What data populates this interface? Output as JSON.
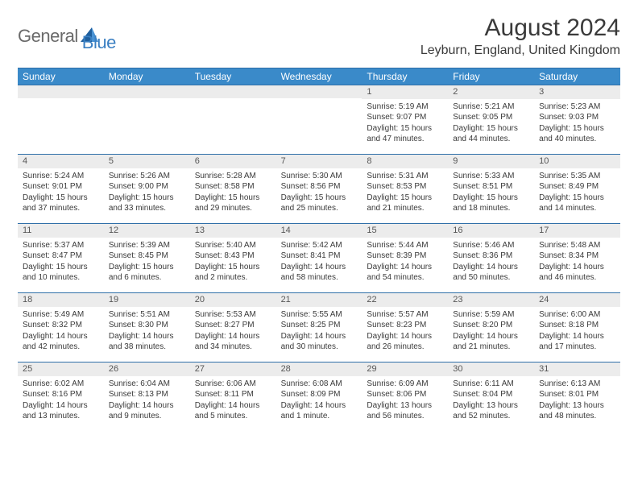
{
  "logo": {
    "part1": "General",
    "part2": "Blue"
  },
  "title": "August 2024",
  "location": "Leyburn, England, United Kingdom",
  "colors": {
    "header_bg": "#3a8ac9",
    "border": "#2f6fa8",
    "daynum_bg": "#ececec",
    "logo_gray": "#6a6a6a",
    "logo_blue": "#3a7fc2"
  },
  "dow": [
    "Sunday",
    "Monday",
    "Tuesday",
    "Wednesday",
    "Thursday",
    "Friday",
    "Saturday"
  ],
  "leading_blanks": 4,
  "days": [
    {
      "n": "1",
      "sr": "Sunrise: 5:19 AM",
      "ss": "Sunset: 9:07 PM",
      "dl1": "Daylight: 15 hours",
      "dl2": "and 47 minutes."
    },
    {
      "n": "2",
      "sr": "Sunrise: 5:21 AM",
      "ss": "Sunset: 9:05 PM",
      "dl1": "Daylight: 15 hours",
      "dl2": "and 44 minutes."
    },
    {
      "n": "3",
      "sr": "Sunrise: 5:23 AM",
      "ss": "Sunset: 9:03 PM",
      "dl1": "Daylight: 15 hours",
      "dl2": "and 40 minutes."
    },
    {
      "n": "4",
      "sr": "Sunrise: 5:24 AM",
      "ss": "Sunset: 9:01 PM",
      "dl1": "Daylight: 15 hours",
      "dl2": "and 37 minutes."
    },
    {
      "n": "5",
      "sr": "Sunrise: 5:26 AM",
      "ss": "Sunset: 9:00 PM",
      "dl1": "Daylight: 15 hours",
      "dl2": "and 33 minutes."
    },
    {
      "n": "6",
      "sr": "Sunrise: 5:28 AM",
      "ss": "Sunset: 8:58 PM",
      "dl1": "Daylight: 15 hours",
      "dl2": "and 29 minutes."
    },
    {
      "n": "7",
      "sr": "Sunrise: 5:30 AM",
      "ss": "Sunset: 8:56 PM",
      "dl1": "Daylight: 15 hours",
      "dl2": "and 25 minutes."
    },
    {
      "n": "8",
      "sr": "Sunrise: 5:31 AM",
      "ss": "Sunset: 8:53 PM",
      "dl1": "Daylight: 15 hours",
      "dl2": "and 21 minutes."
    },
    {
      "n": "9",
      "sr": "Sunrise: 5:33 AM",
      "ss": "Sunset: 8:51 PM",
      "dl1": "Daylight: 15 hours",
      "dl2": "and 18 minutes."
    },
    {
      "n": "10",
      "sr": "Sunrise: 5:35 AM",
      "ss": "Sunset: 8:49 PM",
      "dl1": "Daylight: 15 hours",
      "dl2": "and 14 minutes."
    },
    {
      "n": "11",
      "sr": "Sunrise: 5:37 AM",
      "ss": "Sunset: 8:47 PM",
      "dl1": "Daylight: 15 hours",
      "dl2": "and 10 minutes."
    },
    {
      "n": "12",
      "sr": "Sunrise: 5:39 AM",
      "ss": "Sunset: 8:45 PM",
      "dl1": "Daylight: 15 hours",
      "dl2": "and 6 minutes."
    },
    {
      "n": "13",
      "sr": "Sunrise: 5:40 AM",
      "ss": "Sunset: 8:43 PM",
      "dl1": "Daylight: 15 hours",
      "dl2": "and 2 minutes."
    },
    {
      "n": "14",
      "sr": "Sunrise: 5:42 AM",
      "ss": "Sunset: 8:41 PM",
      "dl1": "Daylight: 14 hours",
      "dl2": "and 58 minutes."
    },
    {
      "n": "15",
      "sr": "Sunrise: 5:44 AM",
      "ss": "Sunset: 8:39 PM",
      "dl1": "Daylight: 14 hours",
      "dl2": "and 54 minutes."
    },
    {
      "n": "16",
      "sr": "Sunrise: 5:46 AM",
      "ss": "Sunset: 8:36 PM",
      "dl1": "Daylight: 14 hours",
      "dl2": "and 50 minutes."
    },
    {
      "n": "17",
      "sr": "Sunrise: 5:48 AM",
      "ss": "Sunset: 8:34 PM",
      "dl1": "Daylight: 14 hours",
      "dl2": "and 46 minutes."
    },
    {
      "n": "18",
      "sr": "Sunrise: 5:49 AM",
      "ss": "Sunset: 8:32 PM",
      "dl1": "Daylight: 14 hours",
      "dl2": "and 42 minutes."
    },
    {
      "n": "19",
      "sr": "Sunrise: 5:51 AM",
      "ss": "Sunset: 8:30 PM",
      "dl1": "Daylight: 14 hours",
      "dl2": "and 38 minutes."
    },
    {
      "n": "20",
      "sr": "Sunrise: 5:53 AM",
      "ss": "Sunset: 8:27 PM",
      "dl1": "Daylight: 14 hours",
      "dl2": "and 34 minutes."
    },
    {
      "n": "21",
      "sr": "Sunrise: 5:55 AM",
      "ss": "Sunset: 8:25 PM",
      "dl1": "Daylight: 14 hours",
      "dl2": "and 30 minutes."
    },
    {
      "n": "22",
      "sr": "Sunrise: 5:57 AM",
      "ss": "Sunset: 8:23 PM",
      "dl1": "Daylight: 14 hours",
      "dl2": "and 26 minutes."
    },
    {
      "n": "23",
      "sr": "Sunrise: 5:59 AM",
      "ss": "Sunset: 8:20 PM",
      "dl1": "Daylight: 14 hours",
      "dl2": "and 21 minutes."
    },
    {
      "n": "24",
      "sr": "Sunrise: 6:00 AM",
      "ss": "Sunset: 8:18 PM",
      "dl1": "Daylight: 14 hours",
      "dl2": "and 17 minutes."
    },
    {
      "n": "25",
      "sr": "Sunrise: 6:02 AM",
      "ss": "Sunset: 8:16 PM",
      "dl1": "Daylight: 14 hours",
      "dl2": "and 13 minutes."
    },
    {
      "n": "26",
      "sr": "Sunrise: 6:04 AM",
      "ss": "Sunset: 8:13 PM",
      "dl1": "Daylight: 14 hours",
      "dl2": "and 9 minutes."
    },
    {
      "n": "27",
      "sr": "Sunrise: 6:06 AM",
      "ss": "Sunset: 8:11 PM",
      "dl1": "Daylight: 14 hours",
      "dl2": "and 5 minutes."
    },
    {
      "n": "28",
      "sr": "Sunrise: 6:08 AM",
      "ss": "Sunset: 8:09 PM",
      "dl1": "Daylight: 14 hours",
      "dl2": "and 1 minute."
    },
    {
      "n": "29",
      "sr": "Sunrise: 6:09 AM",
      "ss": "Sunset: 8:06 PM",
      "dl1": "Daylight: 13 hours",
      "dl2": "and 56 minutes."
    },
    {
      "n": "30",
      "sr": "Sunrise: 6:11 AM",
      "ss": "Sunset: 8:04 PM",
      "dl1": "Daylight: 13 hours",
      "dl2": "and 52 minutes."
    },
    {
      "n": "31",
      "sr": "Sunrise: 6:13 AM",
      "ss": "Sunset: 8:01 PM",
      "dl1": "Daylight: 13 hours",
      "dl2": "and 48 minutes."
    }
  ]
}
